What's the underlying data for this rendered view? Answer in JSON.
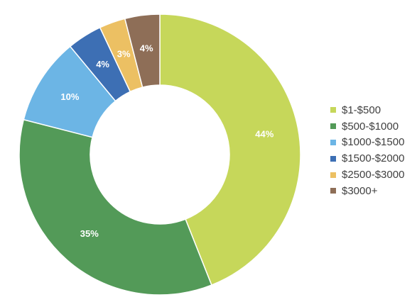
{
  "chart_data": {
    "type": "pie",
    "variant": "donut",
    "title": "",
    "legend_position": "right",
    "categories": [
      "$1-$500",
      "$500-$1000",
      "$1000-$1500",
      "$1500-$2000",
      "$2500-$3000",
      "$3000+"
    ],
    "values": [
      44,
      35,
      10,
      4,
      3,
      4
    ],
    "data_labels": [
      "44%",
      "35%",
      "10%",
      "4%",
      "3%",
      "4%"
    ],
    "colors": [
      "#c6d75a",
      "#539a58",
      "#6cb5e5",
      "#3d6fb4",
      "#ecc063",
      "#8e6e57"
    ]
  }
}
